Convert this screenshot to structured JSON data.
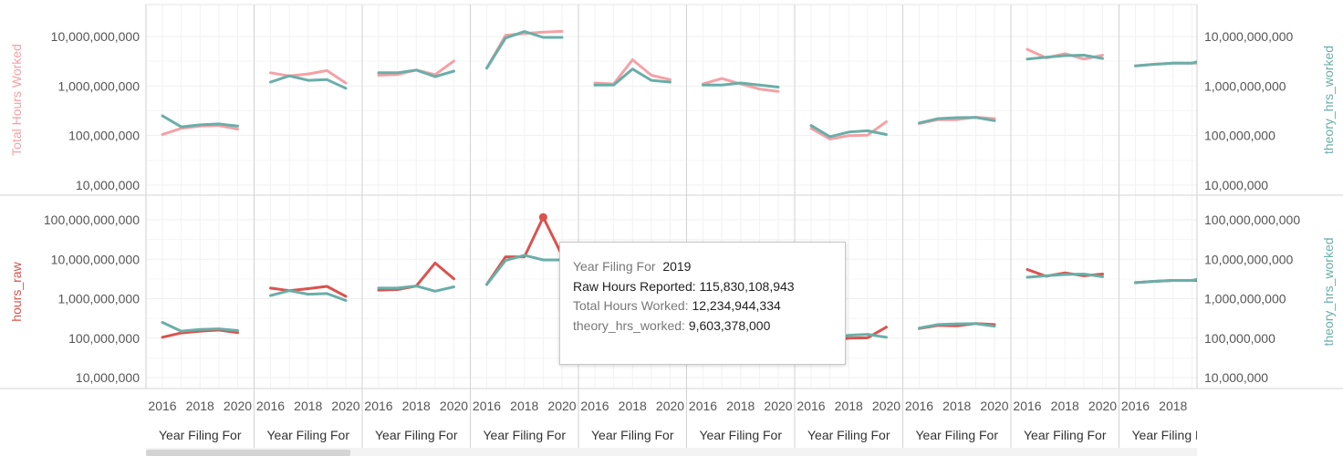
{
  "chart_data": {
    "type": "line",
    "x_label": "Year Filing For",
    "x_ticks": [
      "2016",
      "2018",
      "2020"
    ],
    "x_values": [
      2016,
      2017,
      2018,
      2019,
      2020
    ],
    "y_scale": "log",
    "colors": {
      "total": "#f4a1a6",
      "raw": "#d9534f",
      "theory": "#6aaea8",
      "theory_axis_label": "#6aaea8"
    },
    "rows": [
      {
        "left_axis_label": "Total Hours Worked",
        "right_axis_label": "theory_hrs_worked",
        "ylim": [
          10000000,
          20000000000
        ],
        "left_ticks": [
          "10,000,000,000",
          "1,000,000,000",
          "100,000,000",
          "10,000,000"
        ],
        "left_tick_values": [
          10000000000,
          1000000000,
          100000000,
          10000000
        ],
        "right_ticks": [
          "10,000,000,000",
          "1,000,000,000",
          "100,000,000",
          "10,000,000"
        ],
        "right_tick_values": [
          10000000000,
          1000000000,
          100000000,
          10000000
        ],
        "series_key": "total"
      },
      {
        "left_axis_label": "hours_raw",
        "right_axis_label": "theory_hrs_worked",
        "ylim": [
          8000000,
          200000000000
        ],
        "left_ticks": [
          "100,000,000,000",
          "10,000,000,000",
          "1,000,000,000",
          "100,000,000",
          "10,000,000"
        ],
        "left_tick_values": [
          100000000000,
          10000000000,
          1000000000,
          100000000,
          10000000
        ],
        "right_ticks": [
          "100,000,000,000",
          "10,000,000,000",
          "1,000,000,000",
          "100,000,000",
          "10,000,000"
        ],
        "right_tick_values": [
          100000000000,
          10000000000,
          1000000000,
          100000000,
          10000000
        ],
        "series_key": "raw"
      }
    ],
    "panels": [
      {
        "total": [
          105000000,
          140000000,
          155000000,
          160000000,
          135000000
        ],
        "raw": [
          105000000,
          135000000,
          150000000,
          160000000,
          138000000
        ],
        "theory": [
          250000000,
          150000000,
          165000000,
          172000000,
          155000000
        ]
      },
      {
        "total": [
          1850000000,
          1600000000,
          1750000000,
          2050000000,
          1150000000
        ],
        "raw": [
          1850000000,
          1600000000,
          1800000000,
          2050000000,
          1150000000
        ],
        "theory": [
          1200000000,
          1600000000,
          1300000000,
          1350000000,
          900000000
        ]
      },
      {
        "total": [
          1650000000,
          1700000000,
          2100000000,
          1700000000,
          3200000000
        ],
        "raw": [
          1650000000,
          1700000000,
          2100000000,
          8000000000,
          3200000000
        ],
        "theory": [
          1850000000,
          1850000000,
          2100000000,
          1550000000,
          2000000000
        ]
      },
      {
        "total": [
          2300000000,
          10500000000,
          11500000000,
          12234944334,
          12700000000
        ],
        "raw": [
          2300000000,
          11500000000,
          11500000000,
          115830108943,
          12700000000
        ],
        "theory": [
          2300000000,
          9300000000,
          12600000000,
          9603378000,
          9600000000
        ]
      },
      {
        "total": [
          1150000000,
          1100000000,
          3400000000,
          1650000000,
          1350000000
        ],
        "raw": [
          1150000000,
          1100000000,
          3400000000,
          1650000000,
          1350000000
        ],
        "theory": [
          1050000000,
          1050000000,
          2200000000,
          1300000000,
          1200000000
        ]
      },
      {
        "total": [
          1100000000,
          1420000000,
          1100000000,
          870000000,
          780000000
        ],
        "raw": [
          1100000000,
          1420000000,
          1100000000,
          870000000,
          780000000
        ],
        "theory": [
          1050000000,
          1050000000,
          1150000000,
          1050000000,
          950000000
        ]
      },
      {
        "total": [
          140000000,
          85000000,
          100000000,
          102000000,
          190000000
        ],
        "raw": [
          140000000,
          85000000,
          100000000,
          102000000,
          190000000
        ],
        "theory": [
          160000000,
          95000000,
          118000000,
          125000000,
          105000000
        ]
      },
      {
        "total": [
          175000000,
          210000000,
          210000000,
          235000000,
          220000000
        ],
        "raw": [
          175000000,
          210000000,
          205000000,
          235000000,
          220000000
        ],
        "theory": [
          180000000,
          220000000,
          230000000,
          232000000,
          200000000
        ]
      },
      {
        "total": [
          5500000000,
          3700000000,
          4500000000,
          3500000000,
          4200000000
        ],
        "raw": [
          5500000000,
          3700000000,
          4500000000,
          3800000000,
          4200000000
        ],
        "theory": [
          3500000000,
          3800000000,
          4100000000,
          4200000000,
          3600000000
        ]
      },
      {
        "total": [
          2550000000,
          2750000000,
          2900000000,
          2900000000,
          2900000000
        ],
        "raw": [
          2550000000,
          2750000000,
          2900000000,
          2900000000,
          2900000000
        ],
        "theory": [
          2550000000,
          2750000000,
          2900000000,
          2900000000,
          3600000000
        ]
      }
    ]
  },
  "tooltip": {
    "year_label": "Year Filing For",
    "year_value": "2019",
    "raw_label": "Raw Hours Reported:",
    "raw_value": "115,830,108,943",
    "total_label": "Total Hours Worked:",
    "total_value": "12,234,944,334",
    "theory_label": "theory_hrs_worked:",
    "theory_value": "9,603,378,000"
  }
}
